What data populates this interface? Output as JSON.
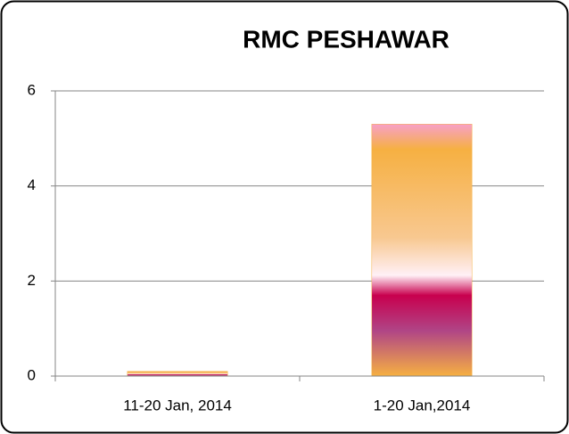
{
  "chart_data": {
    "type": "bar",
    "title": "RMC PESHAWAR",
    "categories": [
      "11-20 Jan, 2014",
      "1-20 Jan,2014"
    ],
    "values": [
      0.1,
      5.3
    ],
    "color": "#f4b043",
    "ylim": [
      0,
      6
    ],
    "yticks": [
      0,
      2,
      4,
      6
    ],
    "grid": true
  }
}
